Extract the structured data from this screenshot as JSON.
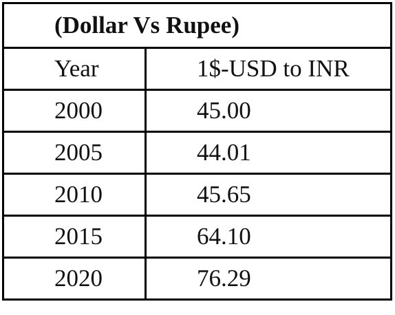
{
  "table": {
    "title": "(Dollar Vs Rupee)",
    "header": [
      "Year",
      "1$-USD to INR"
    ],
    "rows": [
      [
        "2000",
        "45.00"
      ],
      [
        "2005",
        "44.01"
      ],
      [
        "2010",
        "45.65"
      ],
      [
        "2015",
        "64.10"
      ],
      [
        "2020",
        "76.29"
      ]
    ]
  }
}
